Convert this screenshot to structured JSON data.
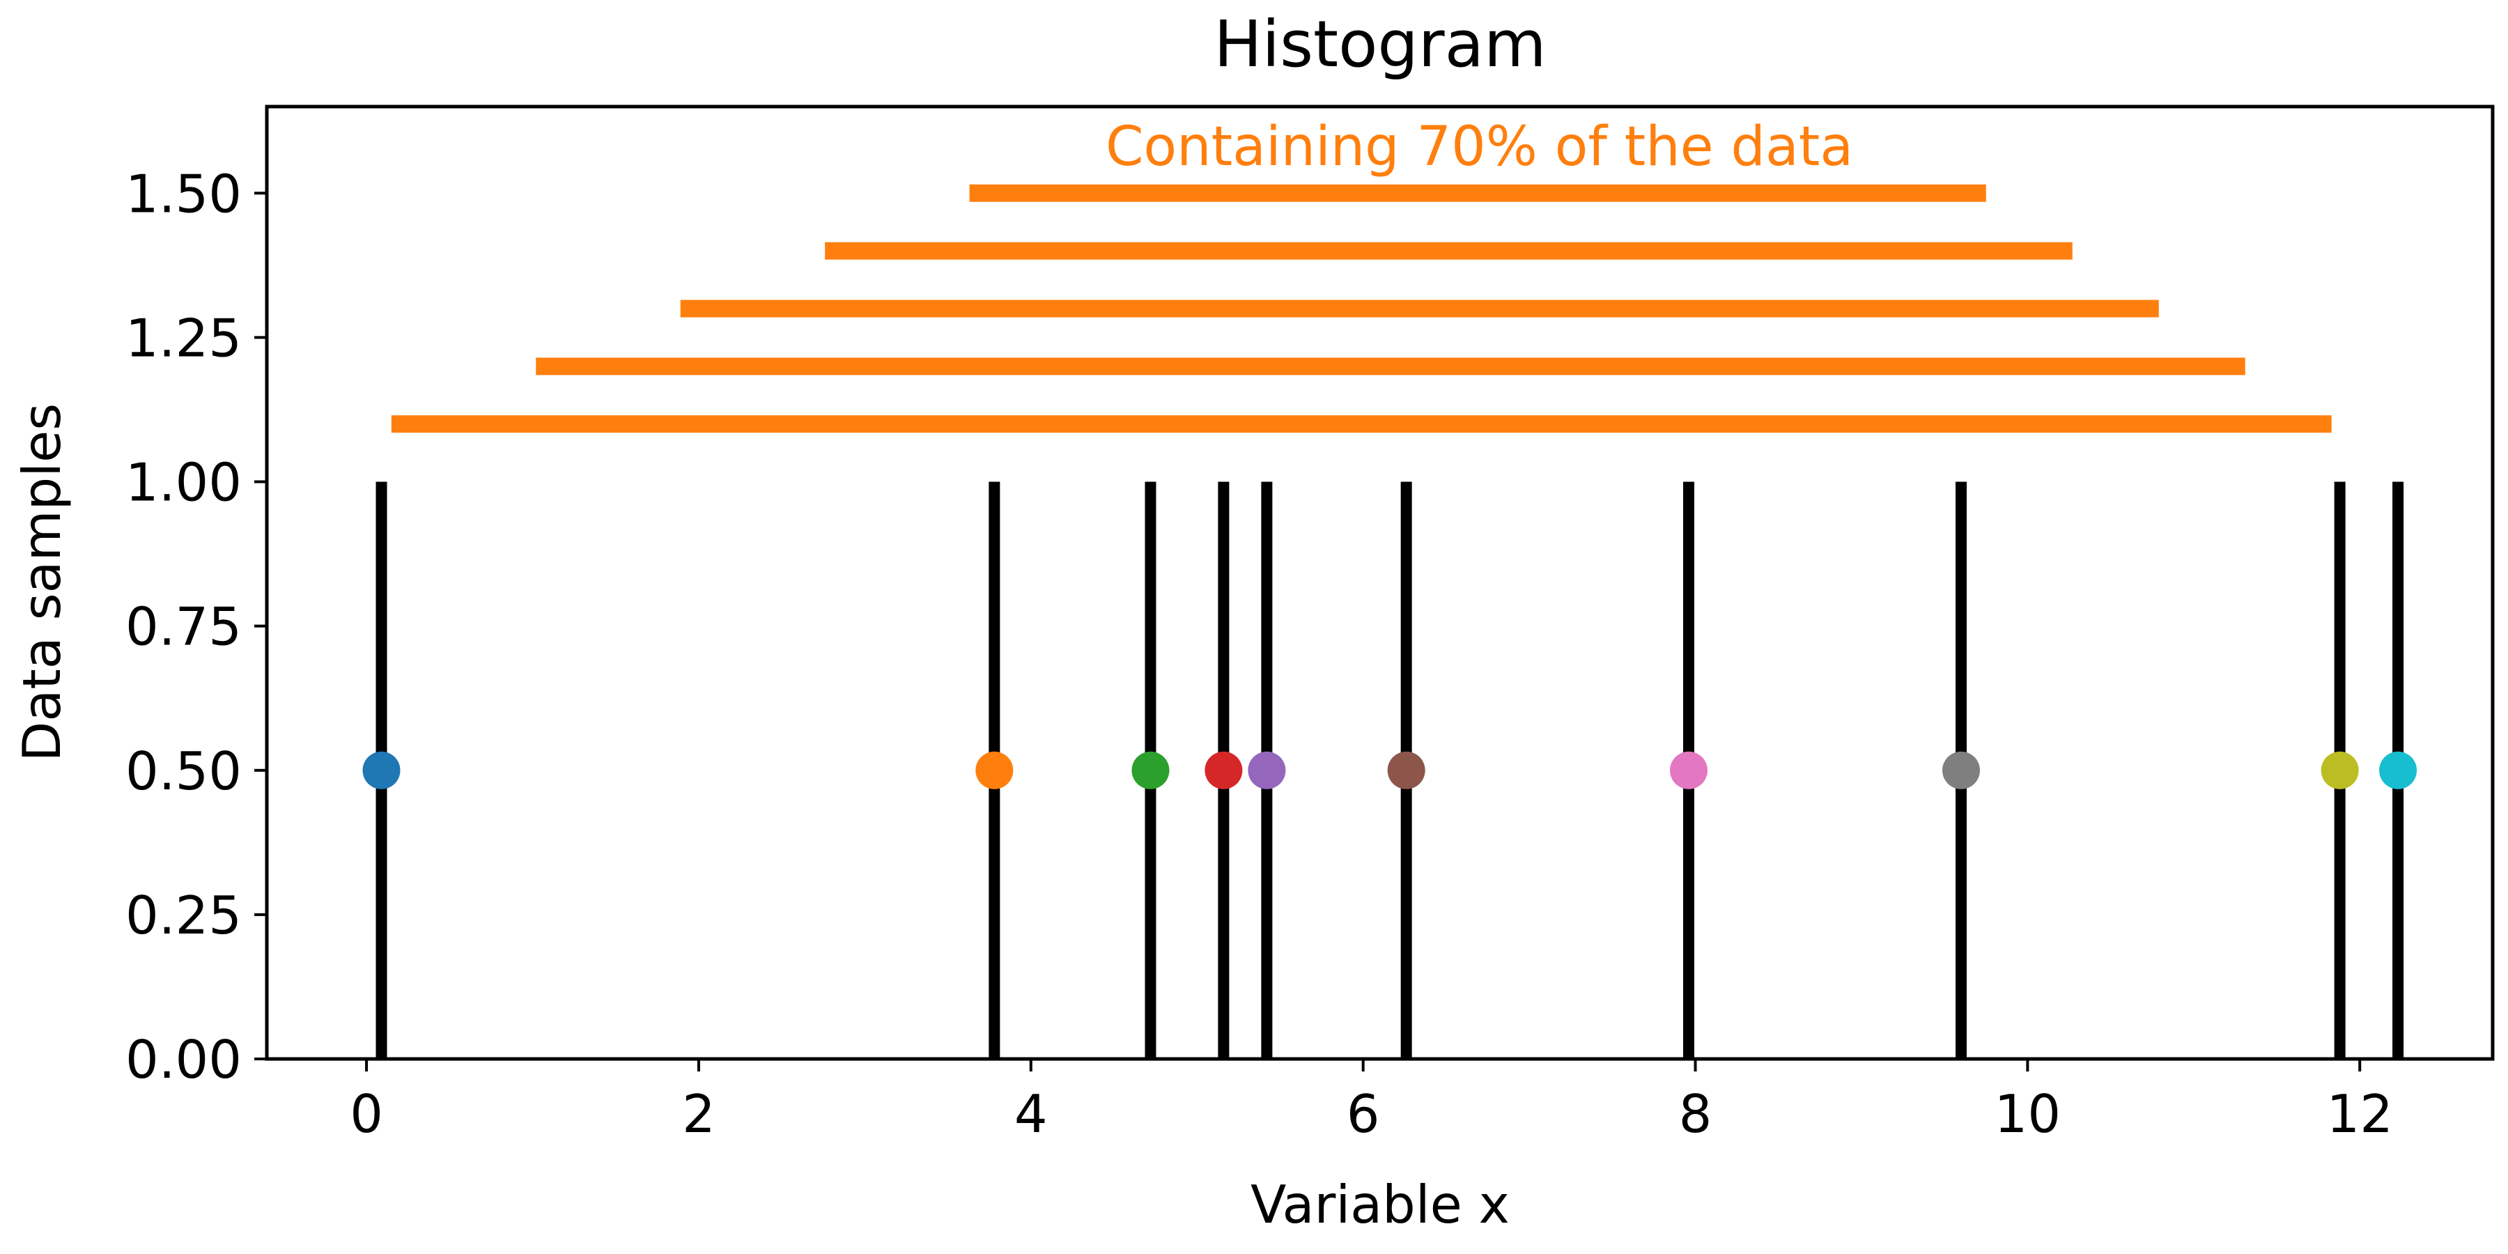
{
  "chart_data": {
    "type": "scatter",
    "title": "Histogram",
    "xlabel": "Variable x",
    "ylabel": "Data samples",
    "xlim": [
      -0.6,
      12.8
    ],
    "ylim": [
      0,
      1.65
    ],
    "xticks": [
      0,
      2,
      4,
      6,
      8,
      10,
      12
    ],
    "xtick_labels": [
      "0",
      "2",
      "4",
      "6",
      "8",
      "10",
      "12"
    ],
    "yticks": [
      0,
      0.25,
      0.5,
      0.75,
      1.0,
      1.25,
      1.5
    ],
    "ytick_labels": [
      "0.00",
      "0.25",
      "0.50",
      "0.75",
      "1.00",
      "1.25",
      "1.50"
    ],
    "grid": false,
    "samples": {
      "x": [
        0.09,
        3.78,
        4.72,
        5.16,
        5.42,
        6.26,
        7.96,
        9.6,
        11.88,
        12.23
      ],
      "y": [
        0.5,
        0.5,
        0.5,
        0.5,
        0.5,
        0.5,
        0.5,
        0.5,
        0.5,
        0.5
      ],
      "colors": [
        "#1f77b4",
        "#ff7f0e",
        "#2ca02c",
        "#d62728",
        "#9467bd",
        "#8c564b",
        "#e377c2",
        "#7f7f7f",
        "#bcbd22",
        "#17becf"
      ]
    },
    "sample_lines": {
      "x": [
        0.09,
        3.78,
        4.72,
        5.16,
        5.42,
        6.26,
        7.96,
        9.6,
        11.88,
        12.23
      ],
      "y_range": [
        0,
        1.0
      ],
      "color": "#000000"
    },
    "intervals": {
      "color": "#ff7f0e",
      "segments": [
        {
          "y": 1.1,
          "x_start": 0.15,
          "x_end": 11.83
        },
        {
          "y": 1.2,
          "x_start": 1.02,
          "x_end": 11.31
        },
        {
          "y": 1.3,
          "x_start": 1.89,
          "x_end": 10.79
        },
        {
          "y": 1.4,
          "x_start": 2.76,
          "x_end": 10.27
        },
        {
          "y": 1.5,
          "x_start": 3.63,
          "x_end": 9.75
        }
      ]
    },
    "annotation": {
      "text": "Containing 70% of the data",
      "x": 6.7,
      "y": 1.58,
      "color": "#ff7f0e"
    }
  }
}
